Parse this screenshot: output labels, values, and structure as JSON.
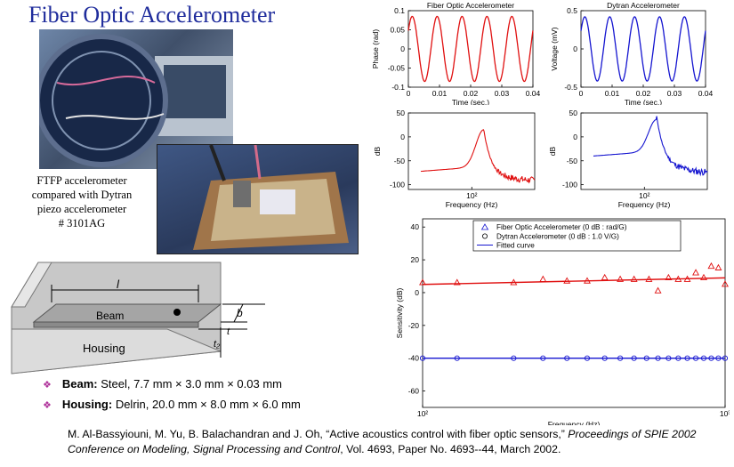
{
  "slide": {
    "title": "Fiber Optic Accelerometer",
    "caption_lines": [
      "FTFP accelerometer",
      "compared with Dytran",
      "piezo accelerometer",
      "# 3101AG"
    ],
    "diagram": {
      "l_label": "l",
      "beam_label": "Beam",
      "housing_label": "Housing",
      "b_label": "b",
      "t_label": "t",
      "t2_label": "t₂"
    },
    "bullets": [
      {
        "label": "Beam:",
        "text": " Steel, 7.7 mm × 3.0 mm × 0.03 mm"
      },
      {
        "label": "Housing:",
        "text": " Delrin, 20.0 mm × 8.0 mm × 6.0 mm"
      }
    ],
    "citation": {
      "authors": "M. Al-Bassyiouni, M. Yu, B. Balachandran and J. Oh, “Active acoustics control with fiber optic sensors,” ",
      "venue": "Proceedings of SPIE 2002 Conference on Modeling, Signal Processing and Control",
      "rest": ", Vol. 4693, Paper No. 4693--44, March 2002."
    }
  },
  "colors": {
    "title": "#1f2c9c",
    "fiber": "#e01010",
    "dytran": "#1515d0",
    "bullet_marker": "#b0339b"
  },
  "chart_data": [
    {
      "id": "fiber-time",
      "type": "line",
      "title": "Fiber Optic Accelerometer",
      "xlabel": "Time     (sec.)",
      "ylabel": "Phase  (rad)",
      "xlim": [
        0,
        0.04
      ],
      "ylim": [
        -0.1,
        0.1
      ],
      "xticks": [
        0,
        0.01,
        0.02,
        0.03,
        0.04
      ],
      "xtick_labels": [
        "0",
        "0.01",
        "0.02",
        "0.03",
        "0.04"
      ],
      "yticks": [
        -0.1,
        -0.05,
        0,
        0.05,
        0.1
      ],
      "ytick_labels": [
        "-0.1",
        "-0.05",
        "0",
        "0.05",
        "0.1"
      ],
      "series": [
        {
          "color": "#e01010",
          "amplitude": 0.085,
          "frequency_hz": 125,
          "phase": 0.6
        }
      ]
    },
    {
      "id": "dytran-time",
      "type": "line",
      "title": "Dytran Accelerometer",
      "xlabel": "Time     (sec.)",
      "ylabel": "Voltage  (mV)",
      "xlim": [
        0,
        0.04
      ],
      "ylim": [
        -0.5,
        0.5
      ],
      "xticks": [
        0,
        0.01,
        0.02,
        0.03,
        0.04
      ],
      "xtick_labels": [
        "0",
        "0.01",
        "0.02",
        "0.03",
        "0.04"
      ],
      "yticks": [
        -0.5,
        0,
        0.5
      ],
      "ytick_labels": [
        "-0.5",
        "0",
        "0.5"
      ],
      "series": [
        {
          "color": "#1515d0",
          "amplitude": 0.42,
          "frequency_hz": 125,
          "phase": 0.6
        }
      ]
    },
    {
      "id": "fiber-spectrum",
      "type": "line",
      "xlabel": "Frequency       (Hz)",
      "ylabel": "dB",
      "xlim": [
        30,
        330
      ],
      "ylim": [
        -110,
        50
      ],
      "log_x": true,
      "xticks": [
        100
      ],
      "xtick_labels": [
        "10²"
      ],
      "yticks": [
        -100,
        -50,
        0,
        50
      ],
      "ytick_labels": [
        "-100",
        "-50",
        "0",
        "50"
      ],
      "series": [
        {
          "color": "#e01010",
          "peak_hz": 125,
          "peak_db": 5,
          "base_db": -72,
          "end_db": -95
        }
      ]
    },
    {
      "id": "dytran-spectrum",
      "type": "line",
      "xlabel": "Frequency       (Hz)",
      "ylabel": "dB",
      "xlim": [
        30,
        330
      ],
      "ylim": [
        -110,
        50
      ],
      "log_x": true,
      "xticks": [
        100
      ],
      "xtick_labels": [
        "10²"
      ],
      "yticks": [
        -100,
        -50,
        0,
        50
      ],
      "ytick_labels": [
        "-100",
        "-50",
        "0",
        "50"
      ],
      "series": [
        {
          "color": "#1515d0",
          "peak_hz": 125,
          "peak_db": 26,
          "base_db": -40,
          "end_db": -82
        }
      ]
    },
    {
      "id": "sensitivity",
      "type": "scatter",
      "xlabel": "Frequency     (Hz)",
      "ylabel": "Sensitivity  (dB)",
      "xlim": [
        100,
        1000
      ],
      "ylim": [
        -70,
        45
      ],
      "log_x": true,
      "xticks": [
        100,
        1000
      ],
      "xtick_labels": [
        "10²",
        "10³"
      ],
      "yticks": [
        -60,
        -40,
        -20,
        0,
        20,
        40
      ],
      "ytick_labels": [
        "-60",
        "-40",
        "-20",
        "0",
        "20",
        "40"
      ],
      "legend": [
        "Fiber Optic Accelerometer  (0 dB : rad/G)",
        "Dytran Accelerometer  (0 dB : 1.0 V/G)",
        "Fitted curve"
      ],
      "legend_placement": "top-right",
      "series": [
        {
          "name": "Fiber Optic Accelerometer  (0 dB : rad/G)",
          "marker": "triangle",
          "color": "#e01010",
          "x": [
            100,
            130,
            200,
            250,
            300,
            350,
            400,
            450,
            500,
            560,
            600,
            650,
            700,
            750,
            800,
            850,
            900,
            950,
            1000
          ],
          "y": [
            6,
            6,
            6,
            8,
            7,
            7,
            9,
            8,
            8,
            8,
            1,
            9,
            8,
            8,
            12,
            9,
            16,
            15,
            5
          ]
        },
        {
          "name": "Dytran Accelerometer  (0 dB : 1.0 V/G)",
          "marker": "circle",
          "color": "#1515d0",
          "x": [
            100,
            130,
            200,
            250,
            300,
            350,
            400,
            450,
            500,
            550,
            600,
            650,
            700,
            750,
            800,
            850,
            900,
            950,
            1000
          ],
          "y": [
            -40,
            -40,
            -40,
            -40,
            -40,
            -40,
            -40,
            -40,
            -40,
            -40,
            -40,
            -40,
            -40,
            -40,
            -40,
            -40,
            -40,
            -40,
            -40
          ]
        },
        {
          "name": "Fitted curve",
          "type": "line",
          "color": "#e01010",
          "x": [
            100,
            1000
          ],
          "y": [
            5,
            9
          ]
        },
        {
          "name": "Fitted curve",
          "type": "line",
          "color": "#1515d0",
          "x": [
            100,
            1000
          ],
          "y": [
            -40,
            -40
          ]
        }
      ]
    }
  ]
}
